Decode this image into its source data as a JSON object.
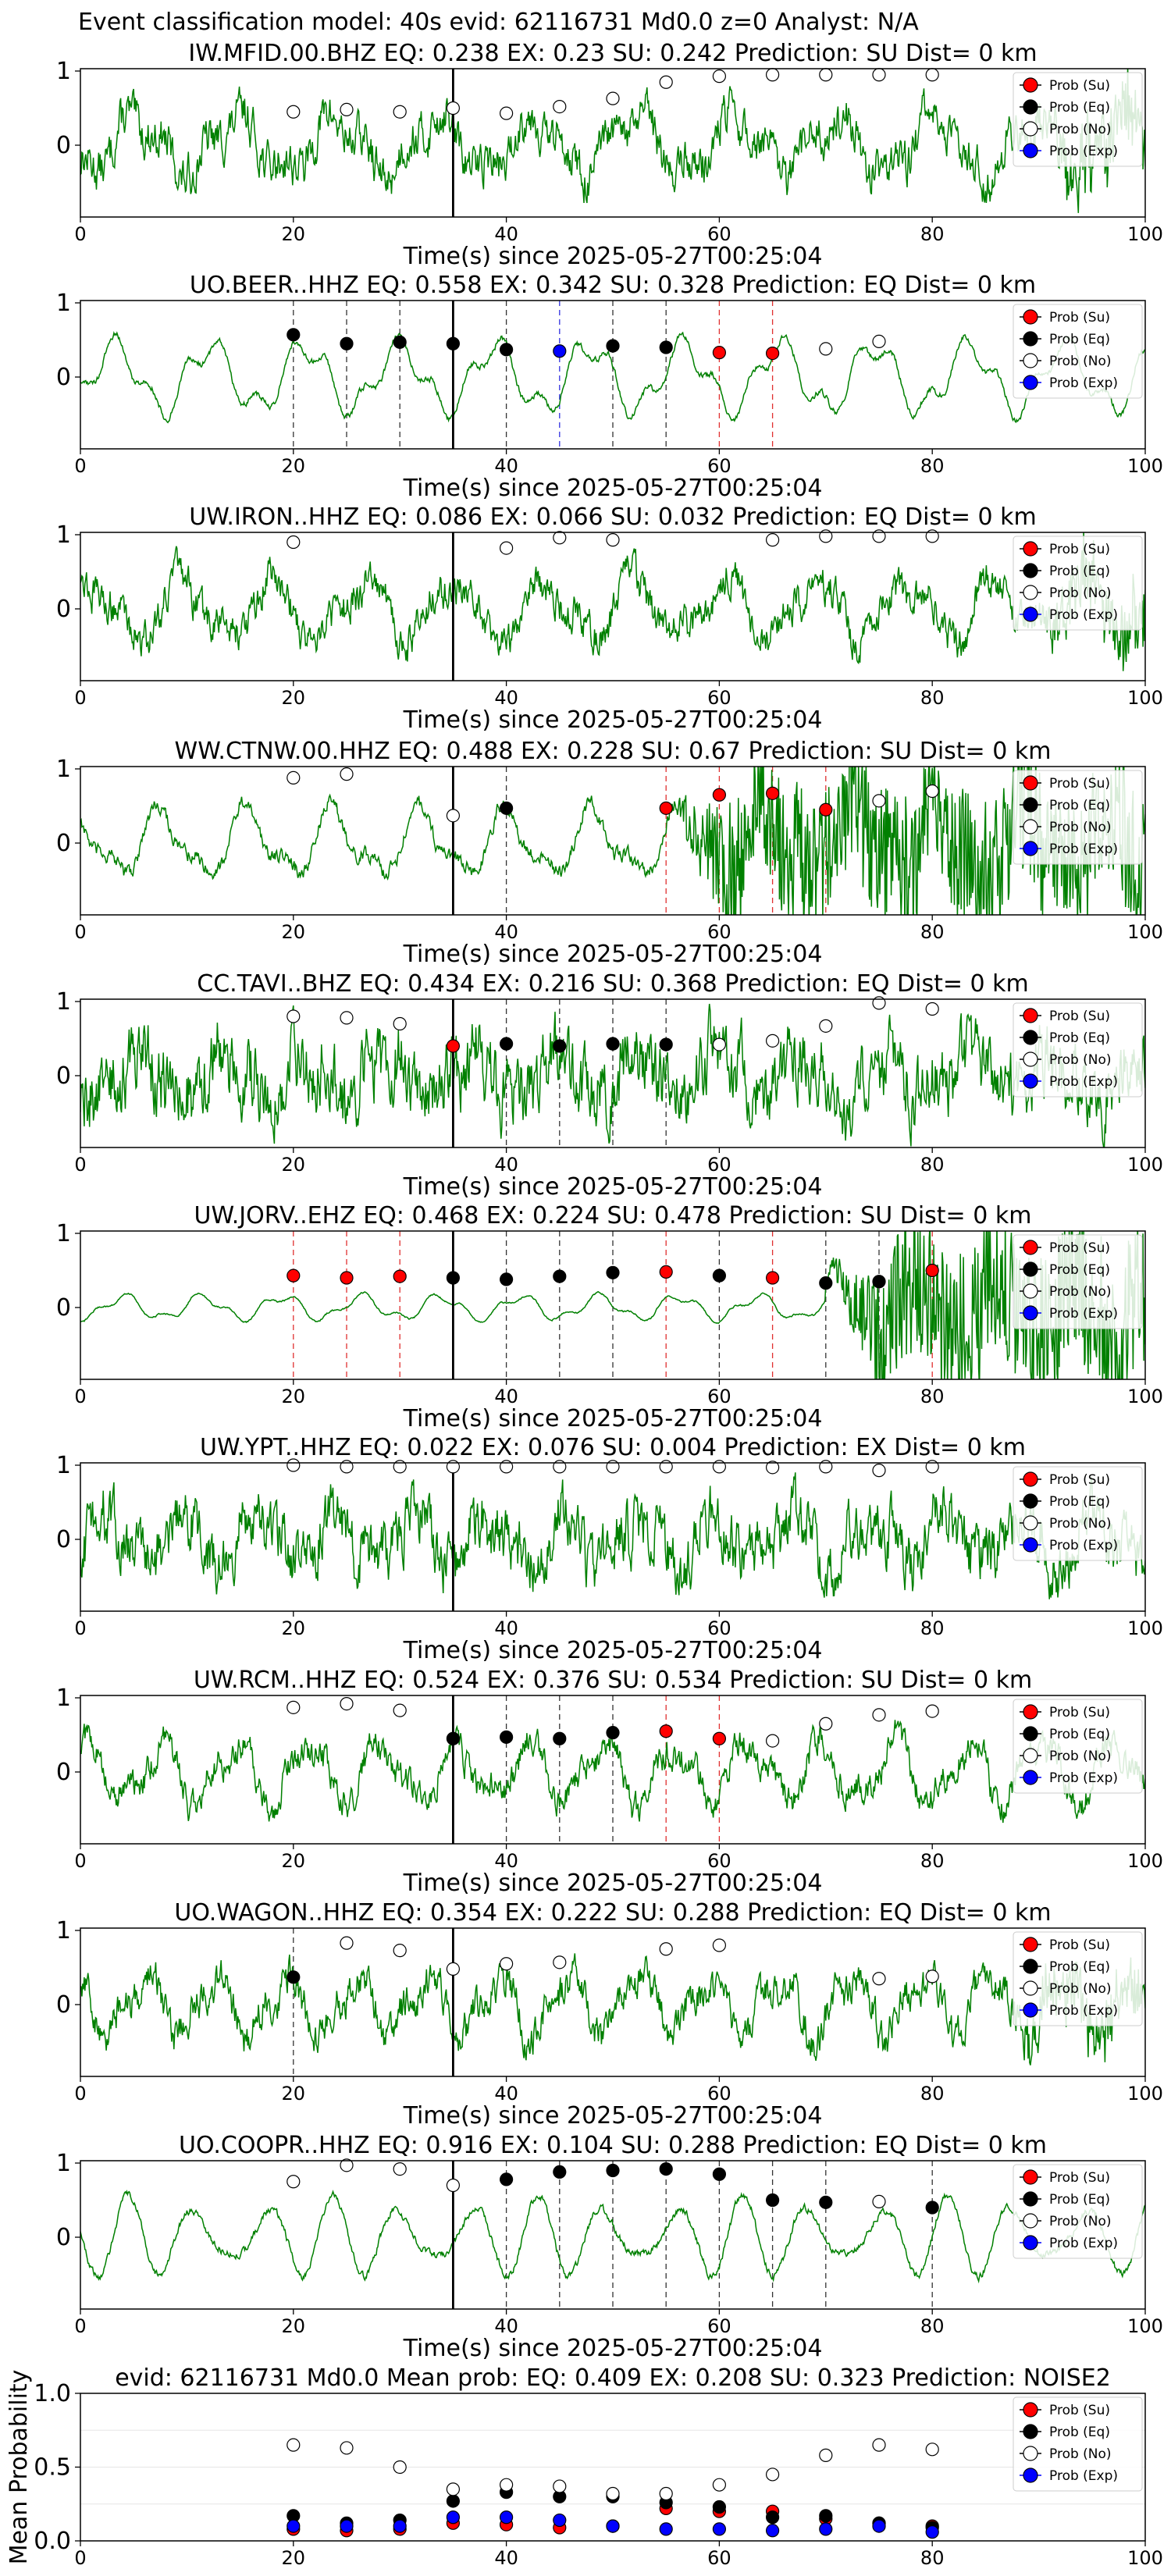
{
  "figure_title": "Event classification model: 40s evid: 62116731 Md0.0 z=0 Analyst: N/A",
  "colors": {
    "waveform": "#008000",
    "su": "#ff0000",
    "eq": "#000000",
    "no": "#ffffff",
    "exp": "#0000ff",
    "arrival": "#000000"
  },
  "legend": [
    "Prob (Su)",
    "Prob (Eq)",
    "Prob (No)",
    "Prob (Exp)"
  ],
  "chart_data": [
    {
      "type": "line",
      "title": "IW.MFID.00.BHZ   EQ: 0.238  EX: 0.23  SU: 0.242   Prediction: SU    Dist= 0 km",
      "xlabel": "Time(s) since 2025-05-27T00:25:04",
      "xlim": [
        0,
        100
      ],
      "ylim": [
        -1,
        1
      ],
      "xticks": [
        "0",
        "20",
        "40",
        "60",
        "80",
        "100"
      ],
      "yticks": [
        "1",
        "0"
      ],
      "arrival": 35,
      "noise": 0.35,
      "burst_start": 88,
      "burst_amp": 0.4,
      "markers": [
        {
          "t": 20,
          "c": "no",
          "p": 0.45
        },
        {
          "t": 25,
          "c": "no",
          "p": 0.48
        },
        {
          "t": 30,
          "c": "no",
          "p": 0.45
        },
        {
          "t": 35,
          "c": "no",
          "p": 0.5
        },
        {
          "t": 40,
          "c": "no",
          "p": 0.43
        },
        {
          "t": 45,
          "c": "no",
          "p": 0.52
        },
        {
          "t": 50,
          "c": "no",
          "p": 0.63
        },
        {
          "t": 55,
          "c": "no",
          "p": 0.85
        },
        {
          "t": 60,
          "c": "no",
          "p": 0.93
        },
        {
          "t": 65,
          "c": "no",
          "p": 0.95
        },
        {
          "t": 70,
          "c": "no",
          "p": 0.95
        },
        {
          "t": 75,
          "c": "no",
          "p": 0.95
        },
        {
          "t": 80,
          "c": "no",
          "p": 0.95
        }
      ]
    },
    {
      "type": "line",
      "title": "UO.BEER..HHZ   EQ: 0.558  EX: 0.342  SU: 0.328   Prediction: EQ    Dist= 0 km",
      "xlabel": "Time(s) since 2025-05-27T00:25:04",
      "xlim": [
        0,
        100
      ],
      "ylim": [
        -1,
        1
      ],
      "xticks": [
        "0",
        "20",
        "40",
        "60",
        "80",
        "100"
      ],
      "yticks": [
        "1",
        "0"
      ],
      "arrival": 35,
      "noise": 0.05,
      "burst_start": 0,
      "burst_amp": 0,
      "markers": [
        {
          "t": 20,
          "c": "eq",
          "p": 0.57
        },
        {
          "t": 25,
          "c": "eq",
          "p": 0.45
        },
        {
          "t": 30,
          "c": "eq",
          "p": 0.47
        },
        {
          "t": 35,
          "c": "eq",
          "p": 0.45
        },
        {
          "t": 40,
          "c": "eq",
          "p": 0.37
        },
        {
          "t": 45,
          "c": "exp",
          "p": 0.35
        },
        {
          "t": 50,
          "c": "eq",
          "p": 0.42
        },
        {
          "t": 55,
          "c": "eq",
          "p": 0.4
        },
        {
          "t": 60,
          "c": "su",
          "p": 0.33
        },
        {
          "t": 65,
          "c": "su",
          "p": 0.32
        },
        {
          "t": 70,
          "c": "no",
          "p": 0.38
        },
        {
          "t": 75,
          "c": "no",
          "p": 0.48
        }
      ]
    },
    {
      "type": "line",
      "title": "UW.IRON..HHZ   EQ: 0.086  EX: 0.066  SU: 0.032   Prediction: EQ    Dist= 0 km",
      "xlabel": "Time(s) since 2025-05-27T00:25:04",
      "xlim": [
        0,
        100
      ],
      "ylim": [
        -1,
        1
      ],
      "xticks": [
        "0",
        "20",
        "40",
        "60",
        "80",
        "100"
      ],
      "yticks": [
        "1",
        "0"
      ],
      "arrival": 35,
      "noise": 0.3,
      "burst_start": 88,
      "burst_amp": 0.35,
      "markers": [
        {
          "t": 20,
          "c": "no",
          "p": 0.9
        },
        {
          "t": 40,
          "c": "no",
          "p": 0.82
        },
        {
          "t": 45,
          "c": "no",
          "p": 0.96
        },
        {
          "t": 50,
          "c": "no",
          "p": 0.93
        },
        {
          "t": 65,
          "c": "no",
          "p": 0.93
        },
        {
          "t": 70,
          "c": "no",
          "p": 0.98
        },
        {
          "t": 75,
          "c": "no",
          "p": 0.98
        },
        {
          "t": 80,
          "c": "no",
          "p": 0.98
        }
      ]
    },
    {
      "type": "line",
      "title": "WW.CTNW.00.HHZ   EQ: 0.488  EX: 0.228  SU: 0.67   Prediction: SU    Dist= 0 km",
      "xlabel": "Time(s) since 2025-05-27T00:25:04",
      "xlim": [
        0,
        100
      ],
      "ylim": [
        -1,
        1
      ],
      "xticks": [
        "0",
        "20",
        "40",
        "60",
        "80",
        "100"
      ],
      "yticks": [
        "1",
        "0"
      ],
      "arrival": 35,
      "noise": 0.12,
      "burst_start": 55,
      "burst_amp": 0.85,
      "markers": [
        {
          "t": 20,
          "c": "no",
          "p": 0.88
        },
        {
          "t": 25,
          "c": "no",
          "p": 0.93
        },
        {
          "t": 35,
          "c": "no",
          "p": 0.37
        },
        {
          "t": 40,
          "c": "eq",
          "p": 0.47
        },
        {
          "t": 55,
          "c": "su",
          "p": 0.47
        },
        {
          "t": 60,
          "c": "su",
          "p": 0.65
        },
        {
          "t": 65,
          "c": "su",
          "p": 0.67
        },
        {
          "t": 70,
          "c": "su",
          "p": 0.45
        },
        {
          "t": 75,
          "c": "no",
          "p": 0.57
        },
        {
          "t": 80,
          "c": "no",
          "p": 0.7
        }
      ]
    },
    {
      "type": "line",
      "title": "CC.TAVI..BHZ   EQ: 0.434  EX: 0.216  SU: 0.368   Prediction: EQ    Dist= 0 km",
      "xlabel": "Time(s) since 2025-05-27T00:25:04",
      "xlim": [
        0,
        100
      ],
      "ylim": [
        -1,
        1
      ],
      "xticks": [
        "0",
        "20",
        "40",
        "60",
        "80",
        "100"
      ],
      "yticks": [
        "1",
        "0"
      ],
      "arrival": 35,
      "noise": 0.6,
      "burst_start": 0,
      "burst_amp": 0,
      "markers": [
        {
          "t": 20,
          "c": "no",
          "p": 0.8
        },
        {
          "t": 25,
          "c": "no",
          "p": 0.78
        },
        {
          "t": 30,
          "c": "no",
          "p": 0.7
        },
        {
          "t": 35,
          "c": "su",
          "p": 0.4
        },
        {
          "t": 40,
          "c": "eq",
          "p": 0.43
        },
        {
          "t": 45,
          "c": "eq",
          "p": 0.4
        },
        {
          "t": 50,
          "c": "eq",
          "p": 0.43
        },
        {
          "t": 55,
          "c": "eq",
          "p": 0.42
        },
        {
          "t": 60,
          "c": "no",
          "p": 0.42
        },
        {
          "t": 65,
          "c": "no",
          "p": 0.47
        },
        {
          "t": 70,
          "c": "no",
          "p": 0.67
        },
        {
          "t": 75,
          "c": "no",
          "p": 0.98
        },
        {
          "t": 80,
          "c": "no",
          "p": 0.9
        }
      ]
    },
    {
      "type": "line",
      "title": "UW.JORV..EHZ   EQ: 0.468  EX: 0.224  SU: 0.478   Prediction: SU    Dist= 0 km",
      "xlabel": "Time(s) since 2025-05-27T00:25:04",
      "xlim": [
        0,
        100
      ],
      "ylim": [
        -1,
        1
      ],
      "xticks": [
        "0",
        "20",
        "40",
        "60",
        "80",
        "100"
      ],
      "yticks": [
        "1",
        "0"
      ],
      "arrival": 35,
      "noise": 0.04,
      "burst_start": 70,
      "burst_amp": 0.95,
      "markers": [
        {
          "t": 20,
          "c": "su",
          "p": 0.43
        },
        {
          "t": 25,
          "c": "su",
          "p": 0.4
        },
        {
          "t": 30,
          "c": "su",
          "p": 0.42
        },
        {
          "t": 35,
          "c": "eq",
          "p": 0.4
        },
        {
          "t": 40,
          "c": "eq",
          "p": 0.38
        },
        {
          "t": 45,
          "c": "eq",
          "p": 0.42
        },
        {
          "t": 50,
          "c": "eq",
          "p": 0.47
        },
        {
          "t": 55,
          "c": "su",
          "p": 0.48
        },
        {
          "t": 60,
          "c": "eq",
          "p": 0.43
        },
        {
          "t": 65,
          "c": "su",
          "p": 0.4
        },
        {
          "t": 70,
          "c": "eq",
          "p": 0.33
        },
        {
          "t": 75,
          "c": "eq",
          "p": 0.35
        },
        {
          "t": 80,
          "c": "su",
          "p": 0.5
        }
      ]
    },
    {
      "type": "line",
      "title": "UW.YPT..HHZ   EQ: 0.022  EX: 0.076  SU: 0.004   Prediction: EX    Dist= 0 km",
      "xlabel": "Time(s) since 2025-05-27T00:25:04",
      "xlim": [
        0,
        100
      ],
      "ylim": [
        -1,
        1
      ],
      "xticks": [
        "0",
        "20",
        "40",
        "60",
        "80",
        "100"
      ],
      "yticks": [
        "1",
        "0"
      ],
      "arrival": 35,
      "noise": 0.5,
      "burst_start": 0,
      "burst_amp": 0,
      "markers": [
        {
          "t": 20,
          "c": "no",
          "p": 1.0
        },
        {
          "t": 25,
          "c": "no",
          "p": 0.98
        },
        {
          "t": 30,
          "c": "no",
          "p": 0.98
        },
        {
          "t": 35,
          "c": "no",
          "p": 0.98
        },
        {
          "t": 40,
          "c": "no",
          "p": 0.98
        },
        {
          "t": 45,
          "c": "no",
          "p": 0.98
        },
        {
          "t": 50,
          "c": "no",
          "p": 0.98
        },
        {
          "t": 55,
          "c": "no",
          "p": 0.98
        },
        {
          "t": 60,
          "c": "no",
          "p": 0.98
        },
        {
          "t": 65,
          "c": "no",
          "p": 0.97
        },
        {
          "t": 70,
          "c": "no",
          "p": 0.98
        },
        {
          "t": 75,
          "c": "no",
          "p": 0.93
        },
        {
          "t": 80,
          "c": "no",
          "p": 0.98
        }
      ]
    },
    {
      "type": "line",
      "title": "UW.RCM..HHZ   EQ: 0.524  EX: 0.376  SU: 0.534   Prediction: SU    Dist= 0 km",
      "xlabel": "Time(s) since 2025-05-27T00:25:04",
      "xlim": [
        0,
        100
      ],
      "ylim": [
        -1,
        1
      ],
      "xticks": [
        "0",
        "20",
        "40",
        "60",
        "80",
        "100"
      ],
      "yticks": [
        "1",
        "0"
      ],
      "arrival": 35,
      "noise": 0.25,
      "burst_start": 0,
      "burst_amp": 0,
      "markers": [
        {
          "t": 20,
          "c": "no",
          "p": 0.87
        },
        {
          "t": 25,
          "c": "no",
          "p": 0.92
        },
        {
          "t": 30,
          "c": "no",
          "p": 0.83
        },
        {
          "t": 35,
          "c": "eq",
          "p": 0.45
        },
        {
          "t": 40,
          "c": "eq",
          "p": 0.47
        },
        {
          "t": 45,
          "c": "eq",
          "p": 0.45
        },
        {
          "t": 50,
          "c": "eq",
          "p": 0.53
        },
        {
          "t": 55,
          "c": "su",
          "p": 0.55
        },
        {
          "t": 60,
          "c": "su",
          "p": 0.45
        },
        {
          "t": 65,
          "c": "no",
          "p": 0.42
        },
        {
          "t": 70,
          "c": "no",
          "p": 0.65
        },
        {
          "t": 75,
          "c": "no",
          "p": 0.77
        },
        {
          "t": 80,
          "c": "no",
          "p": 0.82
        }
      ]
    },
    {
      "type": "line",
      "title": "UO.WAGON..HHZ   EQ: 0.354  EX: 0.222  SU: 0.288   Prediction: EQ    Dist= 0 km",
      "xlabel": "Time(s) since 2025-05-27T00:25:04",
      "xlim": [
        0,
        100
      ],
      "ylim": [
        -1,
        1
      ],
      "xticks": [
        "0",
        "20",
        "40",
        "60",
        "80",
        "100"
      ],
      "yticks": [
        "1",
        "0"
      ],
      "arrival": 35,
      "noise": 0.3,
      "burst_start": 85,
      "burst_amp": 0.3,
      "markers": [
        {
          "t": 20,
          "c": "eq",
          "p": 0.37
        },
        {
          "t": 25,
          "c": "no",
          "p": 0.83
        },
        {
          "t": 30,
          "c": "no",
          "p": 0.73
        },
        {
          "t": 35,
          "c": "no",
          "p": 0.48
        },
        {
          "t": 40,
          "c": "no",
          "p": 0.55
        },
        {
          "t": 45,
          "c": "no",
          "p": 0.57
        },
        {
          "t": 55,
          "c": "no",
          "p": 0.75
        },
        {
          "t": 60,
          "c": "no",
          "p": 0.8
        },
        {
          "t": 75,
          "c": "no",
          "p": 0.35
        },
        {
          "t": 80,
          "c": "no",
          "p": 0.38
        }
      ]
    },
    {
      "type": "line",
      "title": "UO.COOPR..HHZ   EQ: 0.916  EX: 0.104  SU: 0.288   Prediction: EQ    Dist= 0 km",
      "xlabel": "Time(s) since 2025-05-27T00:25:04",
      "xlim": [
        0,
        100
      ],
      "ylim": [
        -1,
        1
      ],
      "xticks": [
        "0",
        "20",
        "40",
        "60",
        "80",
        "100"
      ],
      "yticks": [
        "1",
        "0"
      ],
      "arrival": 35,
      "noise": 0.06,
      "burst_start": 0,
      "burst_amp": 0,
      "markers": [
        {
          "t": 20,
          "c": "no",
          "p": 0.75
        },
        {
          "t": 25,
          "c": "no",
          "p": 0.97
        },
        {
          "t": 30,
          "c": "no",
          "p": 0.92
        },
        {
          "t": 35,
          "c": "no",
          "p": 0.7
        },
        {
          "t": 40,
          "c": "eq",
          "p": 0.78
        },
        {
          "t": 45,
          "c": "eq",
          "p": 0.88
        },
        {
          "t": 50,
          "c": "eq",
          "p": 0.9
        },
        {
          "t": 55,
          "c": "eq",
          "p": 0.92
        },
        {
          "t": 60,
          "c": "eq",
          "p": 0.85
        },
        {
          "t": 65,
          "c": "eq",
          "p": 0.5
        },
        {
          "t": 70,
          "c": "eq",
          "p": 0.47
        },
        {
          "t": 75,
          "c": "no",
          "p": 0.48
        },
        {
          "t": 80,
          "c": "eq",
          "p": 0.4
        }
      ]
    },
    {
      "type": "scatter",
      "title": "evid: 62116731  Md0.0   Mean prob:   EQ: 0.409  EX: 0.208  SU: 0.323   Prediction: NOISE2",
      "ylabel": "Mean Probability",
      "xlim": [
        0,
        100
      ],
      "ylim": [
        0,
        1
      ],
      "xticks": [
        "0",
        "20",
        "40",
        "60",
        "80",
        "100"
      ],
      "yticks": [
        "1.0",
        "0.5",
        "0.0"
      ],
      "x": [
        20,
        25,
        30,
        35,
        40,
        45,
        50,
        55,
        60,
        65,
        70,
        75,
        80
      ],
      "series": [
        {
          "name": "Prob (Su)",
          "values": [
            0.08,
            0.07,
            0.08,
            0.12,
            0.11,
            0.09,
            0.1,
            0.22,
            0.2,
            0.2,
            0.15,
            0.12,
            0.1
          ]
        },
        {
          "name": "Prob (Eq)",
          "values": [
            0.17,
            0.12,
            0.14,
            0.27,
            0.33,
            0.3,
            0.3,
            0.26,
            0.23,
            0.16,
            0.17,
            0.12,
            0.09
          ]
        },
        {
          "name": "Prob (No)",
          "values": [
            0.65,
            0.63,
            0.5,
            0.35,
            0.38,
            0.37,
            0.32,
            0.32,
            0.38,
            0.45,
            0.58,
            0.65,
            0.62
          ]
        },
        {
          "name": "Prob (Exp)",
          "values": [
            0.1,
            0.1,
            0.1,
            0.16,
            0.16,
            0.14,
            0.1,
            0.08,
            0.08,
            0.07,
            0.08,
            0.1,
            0.06
          ]
        }
      ]
    }
  ]
}
